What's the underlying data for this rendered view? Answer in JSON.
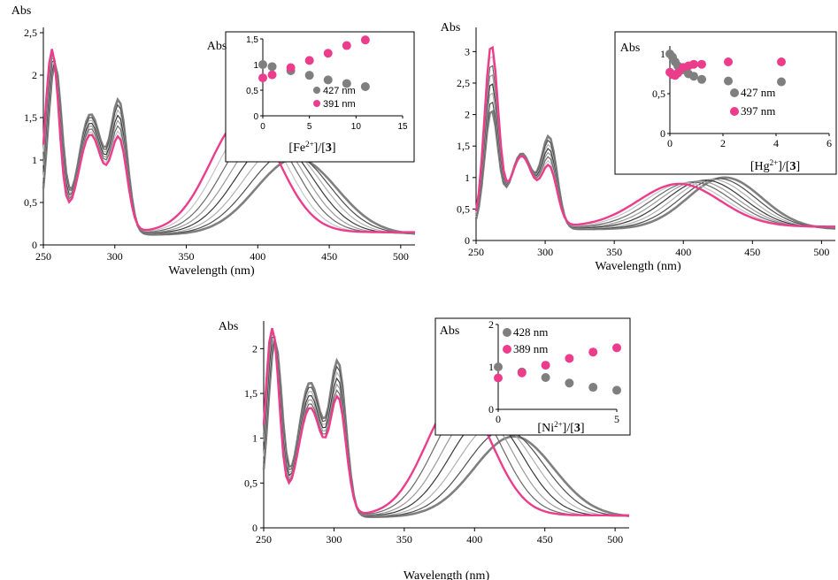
{
  "chart_data": [
    {
      "type": "line",
      "panel": "fe",
      "xlabel": "Wavelength (nm)",
      "ylabel": "Abs",
      "xlim": [
        250,
        510
      ],
      "ylim": [
        0,
        2.5
      ],
      "xticks": [
        "250",
        "300",
        "350",
        "400",
        "450",
        "500"
      ],
      "yticks": [
        "0",
        "0,5",
        "1",
        "1,5",
        "2",
        "2,5"
      ],
      "initial_color": "#7f7f7f",
      "final_color": "#ec3d8c",
      "inset": {
        "ylabel": "Abs",
        "xlabel": {
          "pre": "[Fe",
          "sup": "2+",
          "mid": "]/[",
          "bold": "3",
          "post": "]"
        },
        "xlim": [
          0,
          15
        ],
        "ylim": [
          0,
          1.5
        ],
        "xticks": [
          "0",
          "5",
          "10",
          "15"
        ],
        "yticks": [
          "0",
          "0,5",
          "1",
          "1,5"
        ],
        "series": [
          {
            "name": "427 nm",
            "color": "#7f7f7f",
            "x": [
              0,
              1,
              3,
              5,
              7,
              9,
              11
            ],
            "y": [
              1.0,
              0.96,
              0.88,
              0.79,
              0.7,
              0.63,
              0.57
            ]
          },
          {
            "name": "391 nm",
            "color": "#ec3d8c",
            "x": [
              0,
              1,
              3,
              5,
              7,
              9,
              11
            ],
            "y": [
              0.74,
              0.8,
              0.94,
              1.08,
              1.22,
              1.37,
              1.48
            ]
          }
        ]
      }
    },
    {
      "type": "line",
      "panel": "hg",
      "xlabel": "Wavelength (nm)",
      "ylabel": "Abs",
      "xlim": [
        250,
        510
      ],
      "ylim": [
        0,
        3.3
      ],
      "xticks": [
        "250",
        "300",
        "350",
        "400",
        "450",
        "500"
      ],
      "yticks": [
        "0",
        "0,5",
        "1",
        "1,5",
        "2",
        "2,5",
        "3"
      ],
      "initial_color": "#7f7f7f",
      "final_color": "#ec3d8c",
      "inset": {
        "ylabel": "Abs",
        "xlabel": {
          "pre": "[Hg",
          "sup": "2+",
          "mid": "]/[",
          "bold": "3",
          "post": "]"
        },
        "xlim": [
          0,
          6
        ],
        "ylim": [
          0,
          1.1
        ],
        "xticks": [
          "0",
          "2",
          "4",
          "6"
        ],
        "yticks": [
          "0",
          "0,5",
          "1"
        ],
        "series": [
          {
            "name": "427 nm",
            "color": "#7f7f7f",
            "x": [
              0,
              0.1,
              0.2,
              0.3,
              0.5,
              0.7,
              0.9,
              1.2,
              2.2,
              4.2
            ],
            "y": [
              1.0,
              0.96,
              0.9,
              0.85,
              0.8,
              0.75,
              0.72,
              0.68,
              0.66,
              0.65
            ]
          },
          {
            "name": "397 nm",
            "color": "#ec3d8c",
            "x": [
              0,
              0.1,
              0.2,
              0.3,
              0.5,
              0.7,
              0.9,
              1.2,
              2.2,
              4.2
            ],
            "y": [
              0.77,
              0.74,
              0.73,
              0.76,
              0.83,
              0.85,
              0.87,
              0.87,
              0.9,
              0.9
            ]
          }
        ]
      }
    },
    {
      "type": "line",
      "panel": "ni",
      "xlabel": "Wavelength (nm)",
      "ylabel": "Abs",
      "xlim": [
        250,
        510
      ],
      "ylim": [
        0,
        2.25
      ],
      "xticks": [
        "250",
        "300",
        "350",
        "400",
        "450",
        "500"
      ],
      "yticks": [
        "0",
        "0,5",
        "1",
        "1,5",
        "2"
      ],
      "initial_color": "#7f7f7f",
      "final_color": "#ec3d8c",
      "inset": {
        "ylabel": "Abs",
        "xlabel": {
          "pre": "[Ni",
          "sup": "2+",
          "mid": "]/[",
          "bold": "3",
          "post": "]"
        },
        "xlim": [
          0,
          5
        ],
        "ylim": [
          0,
          2
        ],
        "xticks": [
          "0",
          "5"
        ],
        "yticks": [
          "0",
          "1",
          "2"
        ],
        "series": [
          {
            "name": "428 nm",
            "color": "#7f7f7f",
            "x": [
              0,
              1,
              2,
              3,
              4,
              5
            ],
            "y": [
              1.0,
              0.88,
              0.75,
              0.62,
              0.52,
              0.45
            ]
          },
          {
            "name": "389 nm",
            "color": "#ec3d8c",
            "x": [
              0,
              1,
              2,
              3,
              4,
              5
            ],
            "y": [
              0.74,
              0.86,
              1.04,
              1.2,
              1.35,
              1.45
            ]
          }
        ]
      }
    }
  ]
}
